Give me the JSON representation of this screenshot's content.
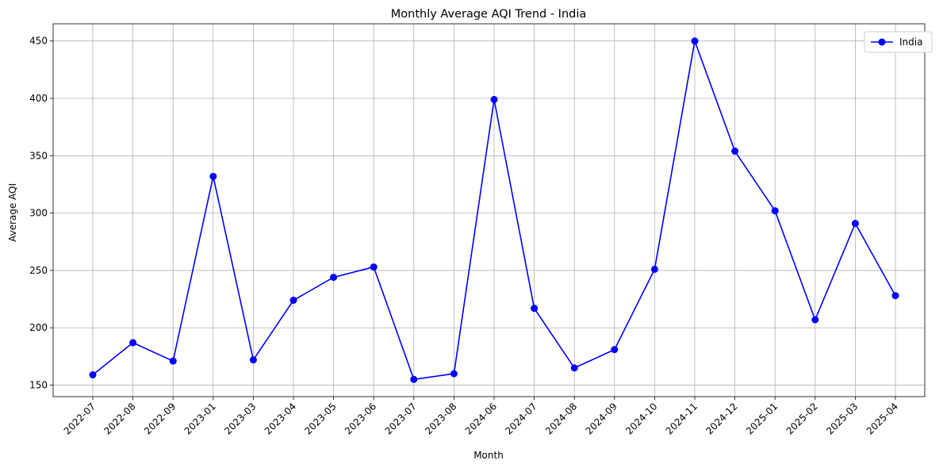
{
  "chart_data": {
    "type": "line",
    "title": "Monthly Average AQI Trend - India",
    "xlabel": "Month",
    "ylabel": "Average AQI",
    "categories": [
      "2022-07",
      "2022-08",
      "2022-09",
      "2023-01",
      "2023-03",
      "2023-04",
      "2023-05",
      "2023-06",
      "2023-07",
      "2023-08",
      "2024-06",
      "2024-07",
      "2024-08",
      "2024-09",
      "2024-10",
      "2024-11",
      "2024-12",
      "2025-01",
      "2025-02",
      "2025-03",
      "2025-04"
    ],
    "series": [
      {
        "name": "India",
        "color": "#0000ff",
        "values": [
          159,
          187,
          171,
          332,
          172,
          224,
          244,
          253,
          155,
          160,
          399,
          217,
          165,
          181,
          251,
          450,
          354,
          302,
          207,
          291,
          228
        ]
      }
    ],
    "ylim": [
      140,
      465
    ],
    "yticks": [
      150,
      200,
      250,
      300,
      350,
      400,
      450
    ],
    "grid": true,
    "legend_position": "top-right"
  }
}
